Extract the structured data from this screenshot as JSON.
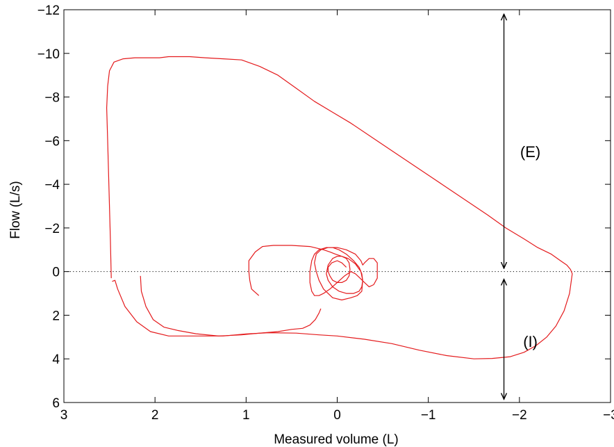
{
  "chart_data": {
    "type": "line",
    "xlabel": "Measured volume (L)",
    "ylabel": "Flow (L/s)",
    "xlim": [
      3,
      -3
    ],
    "ylim": [
      6,
      -12
    ],
    "x_ticks": [
      3,
      2,
      1,
      0,
      -1,
      -2,
      -3
    ],
    "x_tick_labels": [
      "3",
      "2",
      "1",
      "0",
      "−1",
      "−2",
      "−3"
    ],
    "y_ticks": [
      -12,
      -10,
      -8,
      -6,
      -4,
      -2,
      0,
      2,
      4,
      6
    ],
    "y_tick_labels": [
      "−12",
      "−10",
      "−8",
      "−6",
      "−4",
      "−2",
      "0",
      "2",
      "4",
      "6"
    ],
    "grid": false,
    "reference_line": {
      "y": 0,
      "style": "dotted",
      "color": "#000000"
    },
    "series_color": "#e41a1c",
    "series": [
      {
        "x": [
          2.48,
          2.49,
          2.5,
          2.51,
          2.52,
          2.53,
          2.52,
          2.5,
          2.45,
          2.35,
          2.22,
          2.08,
          1.95,
          1.85,
          1.75,
          1.62,
          1.45,
          1.25,
          1.05,
          0.85,
          0.65,
          0.45,
          0.25,
          0.05,
          -0.15,
          -0.4,
          -0.65,
          -0.9,
          -1.15,
          -1.4,
          -1.65,
          -1.85,
          -2.05,
          -2.2,
          -2.35,
          -2.45,
          -2.52,
          -2.56,
          -2.58,
          -2.55,
          -2.49,
          -2.4,
          -2.3,
          -2.18,
          -2.05,
          -1.9,
          -1.7,
          -1.5,
          -1.2,
          -0.9,
          -0.6,
          -0.3,
          0.0,
          0.2,
          0.45,
          0.75,
          1.0,
          1.25,
          1.55,
          1.85,
          2.05,
          2.2,
          2.33,
          2.41,
          2.44,
          2.47
        ],
        "y": [
          0.3,
          -1.5,
          -3.0,
          -4.5,
          -6.0,
          -7.5,
          -8.5,
          -9.2,
          -9.6,
          -9.75,
          -9.8,
          -9.8,
          -9.8,
          -9.85,
          -9.85,
          -9.85,
          -9.8,
          -9.75,
          -9.7,
          -9.4,
          -9.0,
          -8.4,
          -7.8,
          -7.3,
          -6.8,
          -6.1,
          -5.4,
          -4.7,
          -4.0,
          -3.3,
          -2.6,
          -2.0,
          -1.5,
          -1.1,
          -0.8,
          -0.5,
          -0.3,
          -0.1,
          0.1,
          1.0,
          1.8,
          2.5,
          3.0,
          3.4,
          3.7,
          3.9,
          3.98,
          4.0,
          3.85,
          3.6,
          3.3,
          3.1,
          2.95,
          2.9,
          2.82,
          2.8,
          2.86,
          2.95,
          2.95,
          2.95,
          2.75,
          2.3,
          1.6,
          0.8,
          0.4,
          0.45
        ]
      },
      {
        "x": [
          2.16,
          2.15,
          2.1,
          2.02,
          1.9,
          1.75,
          1.55,
          1.3,
          1.05,
          0.85,
          0.65,
          0.5,
          0.38,
          0.3,
          0.24,
          0.2,
          0.18
        ],
        "y": [
          0.2,
          0.9,
          1.6,
          2.2,
          2.55,
          2.7,
          2.85,
          2.95,
          2.9,
          2.82,
          2.75,
          2.65,
          2.6,
          2.45,
          2.2,
          1.9,
          1.7
        ]
      },
      {
        "x": [
          0.86,
          0.94,
          0.96,
          0.97,
          0.97,
          0.9,
          0.82,
          0.7,
          0.5,
          0.3,
          0.15,
          0.08,
          0.02,
          -0.05,
          -0.12,
          -0.2,
          -0.26,
          -0.28,
          -0.27,
          -0.22,
          -0.15,
          -0.05,
          0.05,
          0.15,
          0.2,
          0.23,
          0.25,
          0.23,
          0.18,
          0.1,
          0.0,
          -0.1,
          -0.2,
          -0.26,
          -0.28,
          -0.3,
          -0.35,
          -0.4,
          -0.44,
          -0.44,
          -0.4,
          -0.35,
          -0.3,
          -0.25,
          -0.2,
          -0.15,
          -0.08,
          0.0,
          0.08,
          0.15,
          0.2,
          0.25,
          0.28,
          0.3,
          0.3,
          0.28,
          0.25,
          0.2,
          0.12,
          0.05,
          -0.02,
          -0.1,
          -0.18,
          -0.24,
          -0.27,
          -0.28,
          -0.27,
          -0.24,
          -0.18,
          -0.1,
          -0.02,
          0.05,
          0.1,
          0.12,
          0.1,
          0.05,
          0.0,
          -0.05,
          -0.1,
          -0.13,
          -0.14,
          -0.13,
          -0.1,
          -0.05,
          0.0,
          0.05,
          0.08,
          0.1,
          0.1,
          0.06,
          0.0,
          -0.05,
          -0.1
        ],
        "y": [
          1.1,
          0.8,
          0.4,
          0.0,
          -0.5,
          -0.9,
          -1.15,
          -1.2,
          -1.2,
          -1.15,
          -1.0,
          -0.9,
          -0.8,
          -0.7,
          -0.6,
          -0.35,
          0.0,
          0.4,
          0.9,
          1.1,
          1.2,
          1.3,
          1.2,
          0.8,
          0.4,
          0.0,
          -0.4,
          -0.8,
          -1.0,
          -1.1,
          -1.1,
          -1.0,
          -0.8,
          -0.5,
          -0.3,
          -0.4,
          -0.6,
          -0.6,
          -0.4,
          0.3,
          0.6,
          0.7,
          0.5,
          0.3,
          0.1,
          0.0,
          0.2,
          0.5,
          0.8,
          1.0,
          1.1,
          1.1,
          0.9,
          0.5,
          0.0,
          -0.5,
          -0.8,
          -1.0,
          -1.1,
          -1.1,
          -1.0,
          -0.8,
          -0.5,
          -0.2,
          0.1,
          0.4,
          0.7,
          0.9,
          1.0,
          1.0,
          0.9,
          0.7,
          0.4,
          0.1,
          -0.3,
          -0.6,
          -0.7,
          -0.7,
          -0.6,
          -0.4,
          -0.1,
          0.2,
          0.4,
          0.5,
          0.5,
          0.4,
          0.2,
          0.0,
          -0.2,
          -0.4,
          -0.5,
          -0.4,
          -0.2
        ]
      }
    ],
    "annotations": [
      {
        "text": "(E)",
        "x": -2.12,
        "y": -5.5
      },
      {
        "text": "(I)",
        "x": -2.12,
        "y": 3.2
      }
    ],
    "arrows": [
      {
        "x": -1.83,
        "y_from": -0.15,
        "y_to": -11.8
      },
      {
        "x": -1.83,
        "y_from": 0.35,
        "y_to": 5.85
      }
    ]
  }
}
